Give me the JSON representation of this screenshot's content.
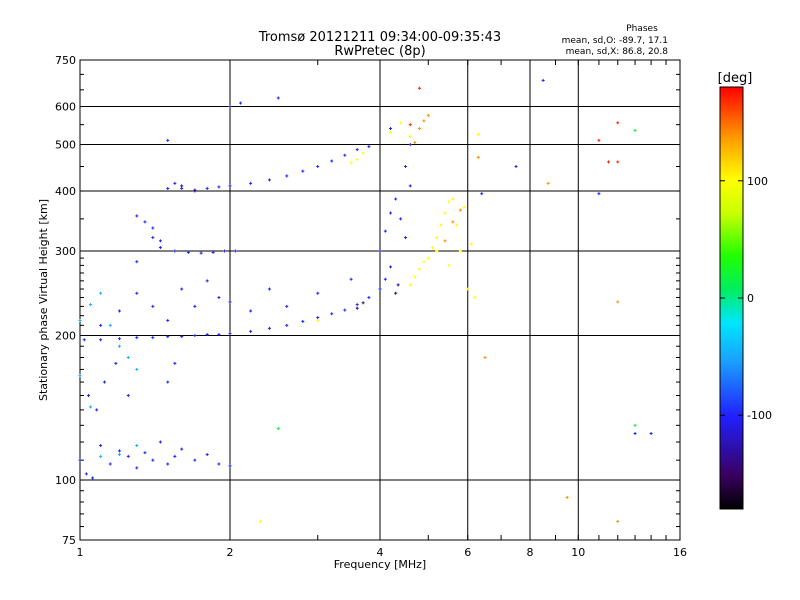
{
  "header": {
    "title_line1": "Tromsø 20121211 09:34:00-09:35:43",
    "title_line2": "RwPretec (8p)"
  },
  "phases_box": {
    "title": "Phases",
    "line_o": "mean, sd,O: -89.7, 17.1",
    "line_x": "mean, sd,X:  86.8, 20.8"
  },
  "colorbar": {
    "unit_label": "[deg]",
    "ticks": [
      "100",
      "0",
      "-100"
    ],
    "range": [
      -180,
      180
    ]
  },
  "chart_data": {
    "type": "scatter",
    "title": "Tromsø 20121211 09:34:00-09:35:43",
    "subtitle": "RwPretec (8p)",
    "xlabel": "Frequency [MHz]",
    "ylabel": "Stationary phase Virtual Height [km]",
    "x_scale": "log",
    "y_scale": "log",
    "xlim": [
      1,
      16
    ],
    "ylim": [
      75,
      750
    ],
    "x_ticks": [
      "1",
      "2",
      "4",
      "6",
      "8",
      "10",
      "16"
    ],
    "y_ticks": [
      "75",
      "100",
      "200",
      "300",
      "400",
      "500",
      "600",
      "750"
    ],
    "grid": true,
    "color_variable": "phase [deg]",
    "series": [
      {
        "phase": -100,
        "points": [
          [
            1.0,
            110
          ],
          [
            1.03,
            103
          ],
          [
            1.06,
            101
          ],
          [
            1.1,
            118
          ],
          [
            1.15,
            108
          ],
          [
            1.2,
            115
          ],
          [
            1.25,
            112
          ],
          [
            1.3,
            106
          ],
          [
            1.35,
            114
          ],
          [
            1.4,
            110
          ],
          [
            1.45,
            120
          ],
          [
            1.5,
            108
          ],
          [
            1.55,
            112
          ],
          [
            1.6,
            116
          ],
          [
            1.7,
            110
          ],
          [
            1.8,
            113
          ],
          [
            1.9,
            108
          ],
          [
            2.0,
            107
          ],
          [
            1.04,
            150
          ],
          [
            1.08,
            140
          ],
          [
            1.12,
            160
          ],
          [
            1.18,
            175
          ],
          [
            1.25,
            150
          ],
          [
            1.5,
            160
          ],
          [
            1.55,
            175
          ],
          [
            1.02,
            196
          ],
          [
            1.1,
            196
          ],
          [
            1.2,
            197
          ],
          [
            1.3,
            198
          ],
          [
            1.4,
            198
          ],
          [
            1.5,
            199
          ],
          [
            1.6,
            199
          ],
          [
            1.7,
            200
          ],
          [
            1.8,
            201
          ],
          [
            1.9,
            201
          ],
          [
            2.0,
            202
          ],
          [
            2.2,
            204
          ],
          [
            2.4,
            207
          ],
          [
            2.6,
            210
          ],
          [
            2.8,
            214
          ],
          [
            3.0,
            218
          ],
          [
            3.2,
            222
          ],
          [
            3.4,
            226
          ],
          [
            3.6,
            232
          ],
          [
            3.8,
            240
          ],
          [
            4.0,
            250
          ],
          [
            4.1,
            262
          ],
          [
            4.2,
            278
          ],
          [
            1.1,
            210
          ],
          [
            1.2,
            225
          ],
          [
            1.3,
            245
          ],
          [
            1.4,
            230
          ],
          [
            1.5,
            215
          ],
          [
            1.6,
            250
          ],
          [
            1.7,
            230
          ],
          [
            1.8,
            260
          ],
          [
            1.9,
            240
          ],
          [
            2.0,
            235
          ],
          [
            2.2,
            225
          ],
          [
            2.4,
            250
          ],
          [
            2.6,
            230
          ],
          [
            3.0,
            245
          ],
          [
            3.5,
            262
          ],
          [
            1.3,
            285
          ],
          [
            1.4,
            320
          ],
          [
            1.45,
            305
          ],
          [
            1.55,
            300
          ],
          [
            1.65,
            298
          ],
          [
            1.75,
            297
          ],
          [
            1.85,
            298
          ],
          [
            1.95,
            300
          ],
          [
            2.05,
            300
          ],
          [
            1.3,
            355
          ],
          [
            1.35,
            345
          ],
          [
            1.4,
            335
          ],
          [
            1.45,
            315
          ],
          [
            1.5,
            405
          ],
          [
            1.55,
            415
          ],
          [
            1.6,
            405
          ],
          [
            1.7,
            402
          ],
          [
            1.8,
            405
          ],
          [
            1.9,
            408
          ],
          [
            2.0,
            410
          ],
          [
            2.2,
            415
          ],
          [
            2.4,
            422
          ],
          [
            2.6,
            430
          ],
          [
            2.8,
            440
          ],
          [
            3.0,
            450
          ],
          [
            3.2,
            462
          ],
          [
            3.4,
            475
          ],
          [
            3.6,
            488
          ],
          [
            3.8,
            495
          ],
          [
            1.5,
            510
          ],
          [
            2.0,
            600
          ],
          [
            2.1,
            610
          ],
          [
            2.5,
            625
          ],
          [
            4.0,
            300
          ],
          [
            4.1,
            330
          ],
          [
            4.2,
            360
          ],
          [
            4.3,
            385
          ],
          [
            4.4,
            350
          ],
          [
            4.5,
            320
          ],
          [
            4.6,
            410
          ],
          [
            4.5,
            450
          ],
          [
            4.6,
            500
          ],
          [
            4.2,
            540
          ],
          [
            8.5,
            680
          ],
          [
            6.4,
            395
          ],
          [
            7.5,
            450
          ],
          [
            11.0,
            395
          ],
          [
            13.0,
            125
          ],
          [
            14.0,
            125
          ]
        ]
      },
      {
        "phase": -140,
        "points": [
          [
            1.6,
            410
          ],
          [
            1.7,
            400
          ],
          [
            3.6,
            228
          ],
          [
            3.7,
            234
          ],
          [
            4.3,
            245
          ],
          [
            4.35,
            255
          ]
        ]
      },
      {
        "phase": -50,
        "points": [
          [
            1.0,
            215
          ],
          [
            1.05,
            232
          ],
          [
            1.1,
            245
          ],
          [
            1.15,
            210
          ],
          [
            1.2,
            190
          ],
          [
            1.25,
            180
          ],
          [
            1.3,
            170
          ],
          [
            1.1,
            112
          ],
          [
            1.2,
            113
          ],
          [
            1.3,
            118
          ],
          [
            1.0,
            165
          ],
          [
            1.05,
            142
          ]
        ]
      },
      {
        "phase": 100,
        "points": [
          [
            4.6,
            255
          ],
          [
            4.7,
            265
          ],
          [
            4.8,
            275
          ],
          [
            4.9,
            285
          ],
          [
            5.0,
            290
          ],
          [
            5.1,
            305
          ],
          [
            5.2,
            320
          ],
          [
            5.3,
            340
          ],
          [
            5.4,
            360
          ],
          [
            5.5,
            380
          ],
          [
            5.6,
            385
          ],
          [
            5.8,
            300
          ],
          [
            6.0,
            250
          ],
          [
            3.0,
            215
          ],
          [
            3.5,
            458
          ],
          [
            3.6,
            465
          ],
          [
            3.7,
            480
          ],
          [
            4.4,
            555
          ],
          [
            4.6,
            520
          ],
          [
            4.2,
            530
          ],
          [
            6.3,
            525
          ],
          [
            2.3,
            82
          ],
          [
            5.2,
            300
          ],
          [
            5.5,
            280
          ],
          [
            5.7,
            340
          ],
          [
            5.9,
            370
          ],
          [
            6.1,
            310
          ],
          [
            6.2,
            240
          ]
        ]
      },
      {
        "phase": 140,
        "points": [
          [
            4.8,
            540
          ],
          [
            4.9,
            560
          ],
          [
            5.0,
            575
          ],
          [
            4.7,
            505
          ],
          [
            5.4,
            315
          ],
          [
            5.6,
            345
          ],
          [
            5.8,
            365
          ],
          [
            6.5,
            180
          ],
          [
            8.7,
            415
          ],
          [
            9.5,
            92
          ],
          [
            12.0,
            235
          ],
          [
            12.0,
            82
          ],
          [
            6.3,
            470
          ]
        ]
      },
      {
        "phase": 170,
        "points": [
          [
            4.8,
            655
          ],
          [
            4.6,
            550
          ],
          [
            11.0,
            510
          ],
          [
            11.5,
            460
          ],
          [
            12.0,
            460
          ],
          [
            12.0,
            555
          ]
        ]
      },
      {
        "phase": 20,
        "points": [
          [
            13.0,
            535
          ],
          [
            13.0,
            130
          ],
          [
            2.5,
            128
          ]
        ]
      }
    ]
  }
}
